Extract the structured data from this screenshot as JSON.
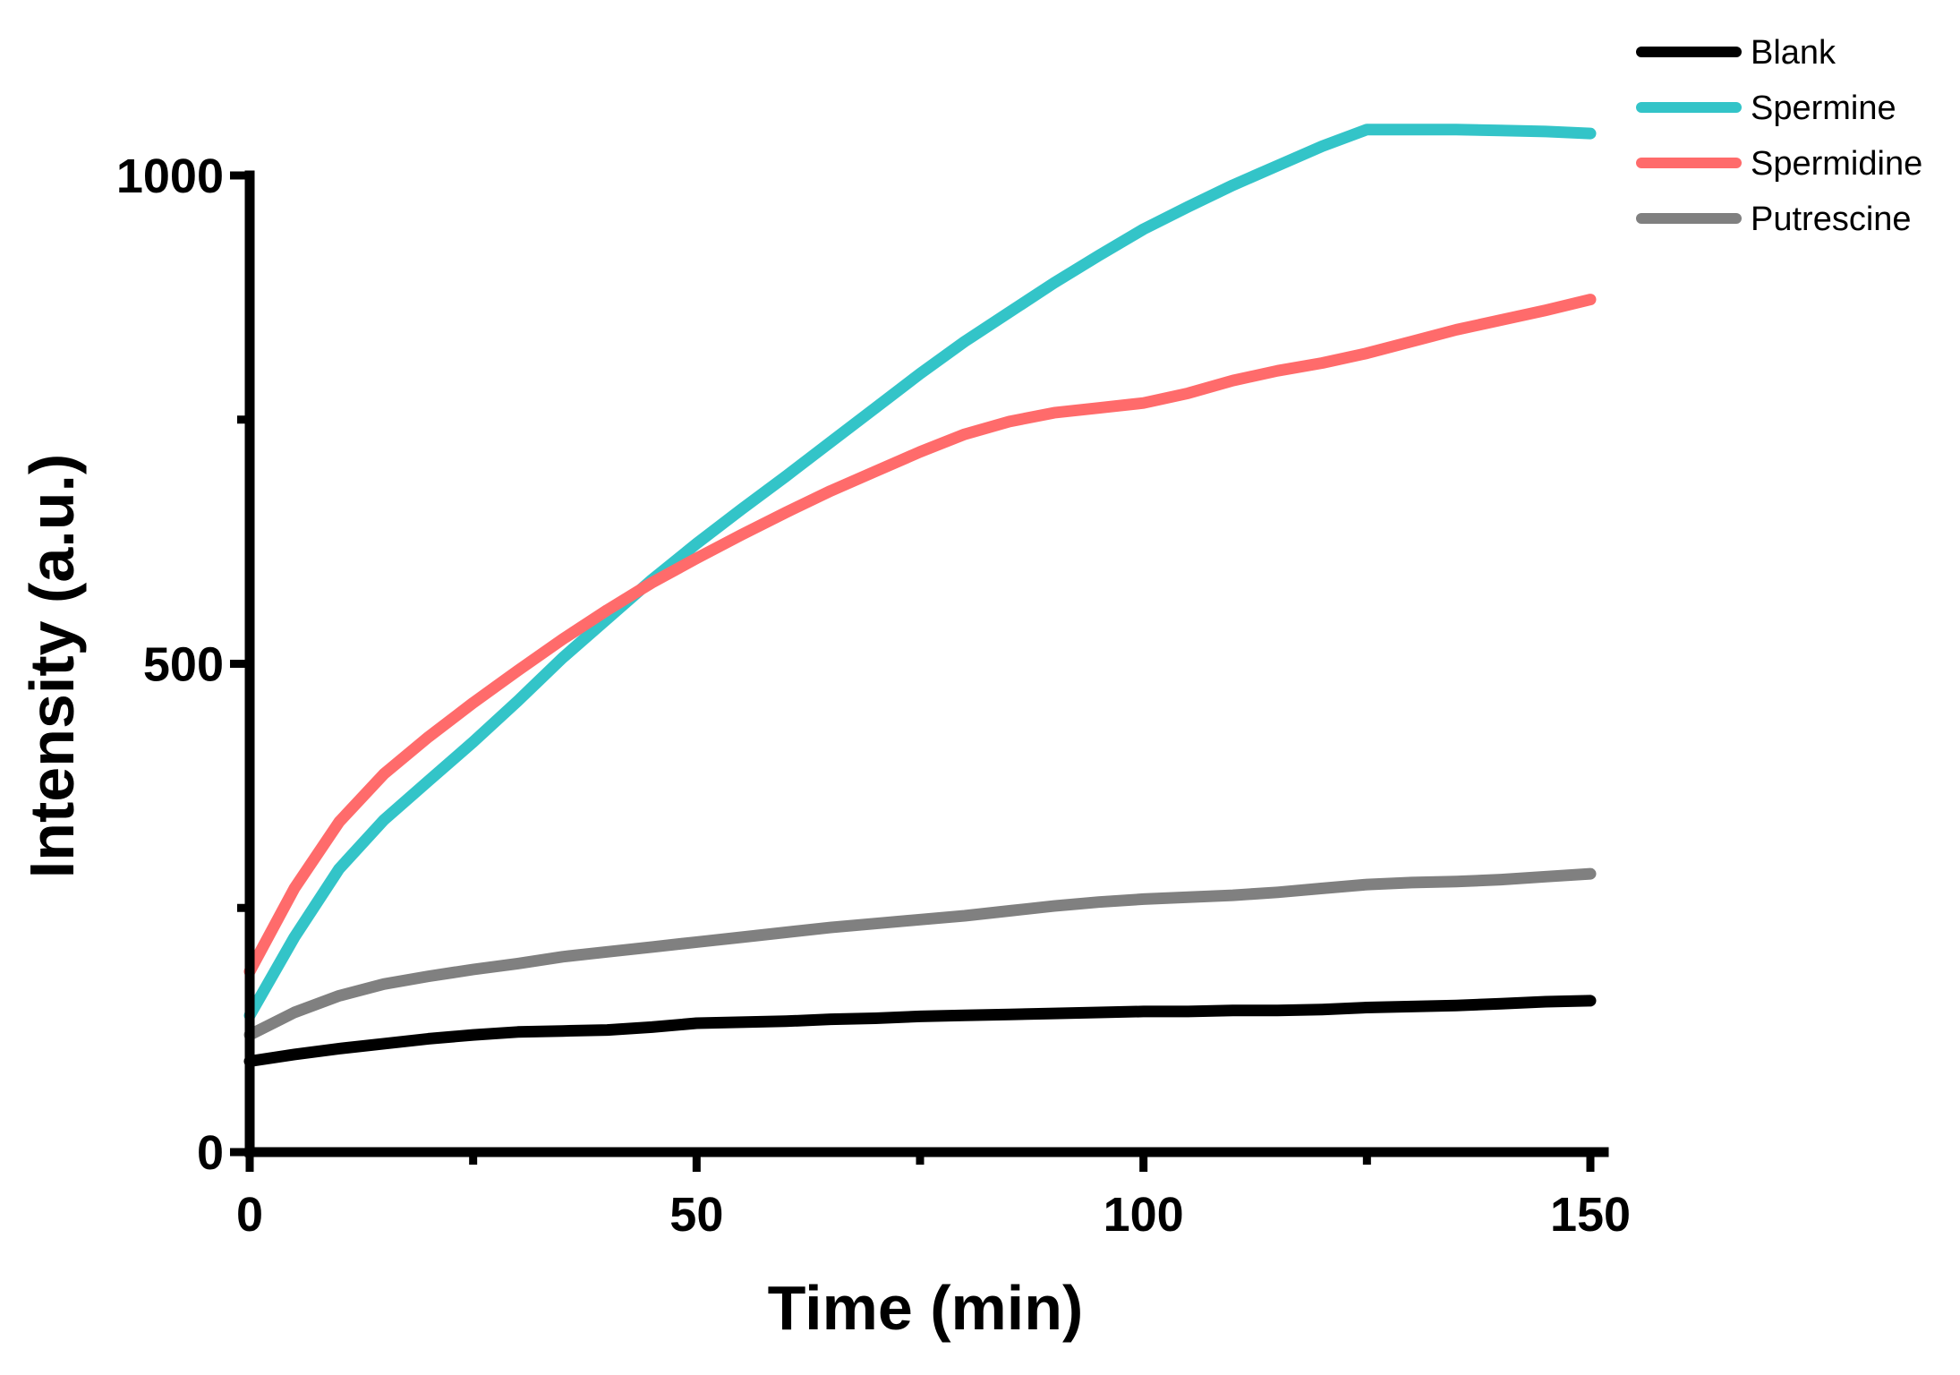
{
  "chart_data": {
    "type": "line",
    "title": "",
    "xlabel": "Time (min)",
    "ylabel": "Intensity (a.u.)",
    "xlim": [
      0,
      150
    ],
    "ylim": [
      0,
      1000
    ],
    "xticks": [
      0,
      50,
      100,
      150
    ],
    "xtick_labels": [
      "0",
      "50",
      "100",
      "150"
    ],
    "xminor_ticks": [
      25,
      75,
      125
    ],
    "yticks": [
      0,
      500,
      1000
    ],
    "ytick_labels": [
      "0",
      "500",
      "1000"
    ],
    "yminor_ticks": [
      250,
      750
    ],
    "grid": false,
    "legend_position": "top-right",
    "series": [
      {
        "name": "Blank",
        "color": "#000000",
        "x": [
          0,
          5,
          10,
          15,
          20,
          25,
          30,
          35,
          40,
          45,
          50,
          55,
          60,
          65,
          70,
          75,
          80,
          85,
          90,
          95,
          100,
          105,
          110,
          115,
          120,
          125,
          130,
          135,
          140,
          145,
          150
        ],
        "y": [
          93,
          100,
          106,
          111,
          116,
          120,
          123,
          124,
          125,
          128,
          132,
          133,
          134,
          136,
          137,
          139,
          140,
          141,
          142,
          143,
          144,
          144,
          145,
          145,
          146,
          148,
          149,
          150,
          152,
          154,
          155
        ]
      },
      {
        "name": "Spermine",
        "color": "#33C4C8",
        "x": [
          0,
          5,
          10,
          15,
          20,
          25,
          30,
          35,
          40,
          45,
          50,
          55,
          60,
          65,
          70,
          75,
          80,
          85,
          90,
          95,
          100,
          105,
          110,
          115,
          120,
          125,
          130,
          135,
          140,
          145,
          150
        ],
        "y": [
          140,
          220,
          290,
          340,
          380,
          420,
          462,
          506,
          546,
          586,
          623,
          658,
          692,
          727,
          762,
          797,
          830,
          860,
          890,
          918,
          945,
          968,
          990,
          1010,
          1030,
          1047,
          1047,
          1047,
          1046,
          1045,
          1043
        ]
      },
      {
        "name": "Spermidine",
        "color": "#FF6B6B",
        "x": [
          0,
          5,
          10,
          15,
          20,
          25,
          30,
          35,
          40,
          45,
          50,
          55,
          60,
          65,
          70,
          75,
          80,
          85,
          90,
          95,
          100,
          105,
          110,
          115,
          120,
          125,
          130,
          135,
          140,
          145,
          150
        ],
        "y": [
          185,
          270,
          338,
          387,
          425,
          460,
          493,
          525,
          555,
          583,
          608,
          632,
          655,
          677,
          697,
          717,
          735,
          748,
          757,
          762,
          767,
          777,
          790,
          800,
          808,
          818,
          830,
          842,
          852,
          862,
          873
        ]
      },
      {
        "name": "Putrescine",
        "color": "#808080",
        "x": [
          0,
          5,
          10,
          15,
          20,
          25,
          30,
          35,
          40,
          45,
          50,
          55,
          60,
          65,
          70,
          75,
          80,
          85,
          90,
          95,
          100,
          105,
          110,
          115,
          120,
          125,
          130,
          135,
          140,
          145,
          150
        ],
        "y": [
          120,
          143,
          160,
          172,
          180,
          187,
          193,
          200,
          205,
          210,
          215,
          220,
          225,
          230,
          234,
          238,
          242,
          247,
          252,
          256,
          259,
          261,
          263,
          266,
          270,
          274,
          276,
          277,
          279,
          282,
          285
        ]
      }
    ]
  }
}
